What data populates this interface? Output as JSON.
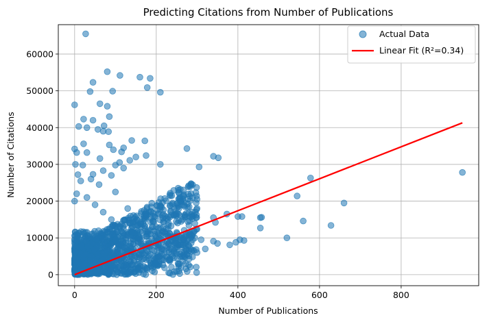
{
  "chart_data": {
    "type": "scatter",
    "title": "Predicting Citations from Number of Publications",
    "xlabel": "Number of Publications",
    "ylabel": "Number of Citations",
    "xlim": [
      -40,
      990
    ],
    "ylim": [
      -3000,
      68000
    ],
    "xticks": [
      0,
      200,
      400,
      600,
      800
    ],
    "yticks": [
      0,
      10000,
      20000,
      30000,
      40000,
      50000,
      60000
    ],
    "grid": true,
    "legend_position": "top-right",
    "colors": {
      "scatter": "#1f77b4",
      "fit_line": "#ff0000"
    },
    "series": [
      {
        "name": "Actual Data",
        "kind": "scatter",
        "note": "representative visible points; dense cluster near origin summarized",
        "points": [
          [
            27,
            65500
          ],
          [
            80,
            55200
          ],
          [
            111,
            54200
          ],
          [
            160,
            53700
          ],
          [
            185,
            53400
          ],
          [
            38,
            49800
          ],
          [
            93,
            49900
          ],
          [
            210,
            49600
          ],
          [
            178,
            50900
          ],
          [
            0,
            46200
          ],
          [
            80,
            45800
          ],
          [
            45,
            52300
          ],
          [
            62,
            46500
          ],
          [
            85,
            43000
          ],
          [
            72,
            40500
          ],
          [
            10,
            40300
          ],
          [
            22,
            42300
          ],
          [
            30,
            40000
          ],
          [
            45,
            42000
          ],
          [
            57,
            39500
          ],
          [
            70,
            39000
          ],
          [
            83,
            38900
          ],
          [
            140,
            36500
          ],
          [
            172,
            36400
          ],
          [
            120,
            34500
          ],
          [
            0,
            34200
          ],
          [
            5,
            33200
          ],
          [
            22,
            35600
          ],
          [
            30,
            33200
          ],
          [
            85,
            35300
          ],
          [
            95,
            34000
          ],
          [
            115,
            33400
          ],
          [
            150,
            32000
          ],
          [
            62,
            31600
          ],
          [
            110,
            30500
          ],
          [
            135,
            31100
          ],
          [
            175,
            32400
          ],
          [
            2,
            30000
          ],
          [
            20,
            29800
          ],
          [
            100,
            29800
          ],
          [
            120,
            29000
          ],
          [
            210,
            30000
          ],
          [
            8,
            27200
          ],
          [
            45,
            27300
          ],
          [
            70,
            28300
          ],
          [
            90,
            27000
          ],
          [
            275,
            34300
          ],
          [
            340,
            32200
          ],
          [
            352,
            31800
          ],
          [
            305,
            29300
          ],
          [
            300,
            20500
          ],
          [
            262,
            19000
          ],
          [
            240,
            19500
          ],
          [
            300,
            18000
          ],
          [
            210,
            18800
          ],
          [
            373,
            16500
          ],
          [
            270,
            16000
          ],
          [
            340,
            15500
          ],
          [
            345,
            14200
          ],
          [
            400,
            15800
          ],
          [
            410,
            15800
          ],
          [
            455,
            15500
          ],
          [
            458,
            15600
          ],
          [
            455,
            12700
          ],
          [
            405,
            9500
          ],
          [
            395,
            8800
          ],
          [
            415,
            9300
          ],
          [
            380,
            8100
          ],
          [
            340,
            9100
          ],
          [
            520,
            10000
          ],
          [
            545,
            21400
          ],
          [
            560,
            14600
          ],
          [
            578,
            26300
          ],
          [
            628,
            13400
          ],
          [
            660,
            19500
          ],
          [
            950,
            27800
          ],
          [
            250,
            11500
          ],
          [
            280,
            13400
          ],
          [
            300,
            12400
          ],
          [
            230,
            14000
          ],
          [
            200,
            13000
          ],
          [
            180,
            12000
          ],
          [
            150,
            14500
          ],
          [
            130,
            18000
          ],
          [
            100,
            22500
          ],
          [
            60,
            24500
          ],
          [
            40,
            26000
          ],
          [
            15,
            25500
          ],
          [
            5,
            22000
          ],
          [
            0,
            20000
          ],
          [
            30,
            21000
          ],
          [
            50,
            19000
          ],
          [
            70,
            17000
          ],
          [
            90,
            15000
          ],
          [
            110,
            13000
          ],
          [
            140,
            11500
          ],
          [
            160,
            9500
          ],
          [
            200,
            9000
          ],
          [
            230,
            8500
          ],
          [
            260,
            7500
          ],
          [
            280,
            6500
          ],
          [
            300,
            6000
          ],
          [
            320,
            7000
          ],
          [
            350,
            8500
          ],
          [
            310,
            9500
          ]
        ]
      },
      {
        "name": "Linear Fit (R²=0.34)",
        "kind": "line",
        "x": [
          0,
          950
        ],
        "y": [
          0,
          41300
        ]
      }
    ]
  }
}
